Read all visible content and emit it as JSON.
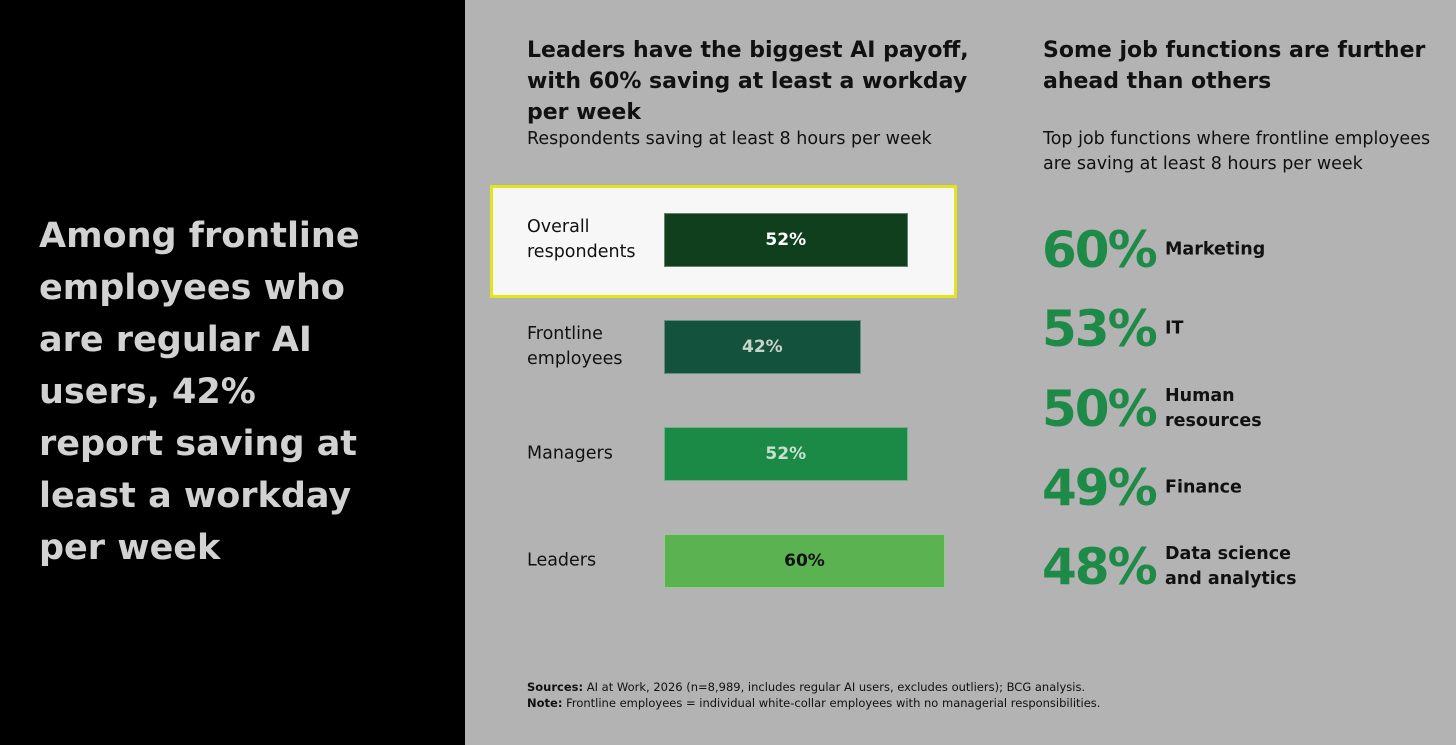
{
  "headline": "Among frontline employees who are regular AI users, 42% report saving at least a workday per week",
  "chart_data": [
    {
      "type": "bar",
      "orientation": "horizontal",
      "title": "Leaders have the biggest AI payoff, with 60% saving at least a workday per week",
      "subtitle": "Respondents saving at least 8 hours per week",
      "categories": [
        "Overall respondents",
        "Frontline employees",
        "Managers",
        "Leaders"
      ],
      "values": [
        52,
        42,
        52,
        60
      ],
      "value_labels": [
        "52%",
        "42%",
        "52%",
        "60%"
      ],
      "colors": [
        "#0f3f1c",
        "#13523c",
        "#1a8a46",
        "#5ab350"
      ],
      "label_colors": [
        "#ffffff",
        "#c9d3cc",
        "#c9e0cf",
        "#111111"
      ],
      "highlight": [
        true,
        false,
        false,
        false
      ]
    },
    {
      "type": "stat-list",
      "title": "Some job functions are further ahead than others",
      "subtitle": "Top job functions where frontline employees are saving at least 8 hours per week",
      "categories": [
        "Marketing",
        "IT",
        "Human resources",
        "Finance",
        "Data science and analytics"
      ],
      "values": [
        60,
        53,
        50,
        49,
        48
      ],
      "value_labels": [
        "60%",
        "53%",
        "50%",
        "49%",
        "48%"
      ],
      "color": "#1d8a47"
    }
  ],
  "footer": {
    "sources_label": "Sources:",
    "sources": "AI at Work, 2026 (n=8,989, includes regular AI users, excludes outliers); BCG analysis.",
    "note_label": "Note:",
    "note": "Frontline employees = individual white-collar employees with no managerial responsibilities."
  }
}
